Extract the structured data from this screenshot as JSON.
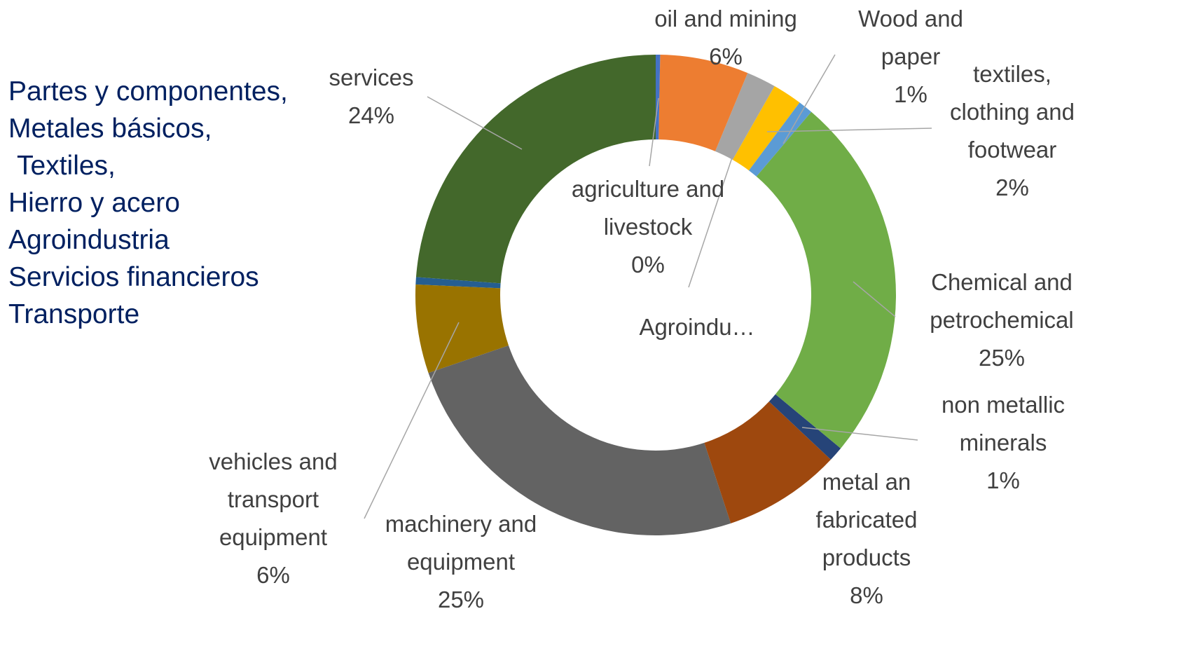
{
  "notes_text": [
    "Partes y componentes,",
    "Metales básicos,",
    "Textiles,",
    "Hierro y acero",
    "Agroindustria",
    "Servicios financieros",
    "Transporte"
  ],
  "chart_data": {
    "type": "donut",
    "categories": [
      "agriculture and livestock",
      "oil and mining",
      "Agroindu…",
      "textiles, clothing and footwear",
      "Wood and paper",
      "Chemical and petrochemical",
      "non metallic minerals",
      "metal an fabricated products",
      "machinery and equipment",
      "vehicles and transport equipment",
      null,
      "services"
    ],
    "values": [
      0.3,
      6,
      2,
      2,
      1,
      25,
      1,
      8,
      25,
      6,
      0.5,
      24
    ],
    "value_labels": [
      "0%",
      "6%",
      null,
      "2%",
      "1%",
      "25%",
      "1%",
      "8%",
      "25%",
      "6%",
      null,
      "24%"
    ],
    "colors": [
      "#4472c4",
      "#ed7d31",
      "#a5a5a5",
      "#ffc000",
      "#5b9bd5",
      "#70ad47",
      "#264478",
      "#9e480e",
      "#636363",
      "#997300",
      "#255e91",
      "#43682b"
    ]
  }
}
